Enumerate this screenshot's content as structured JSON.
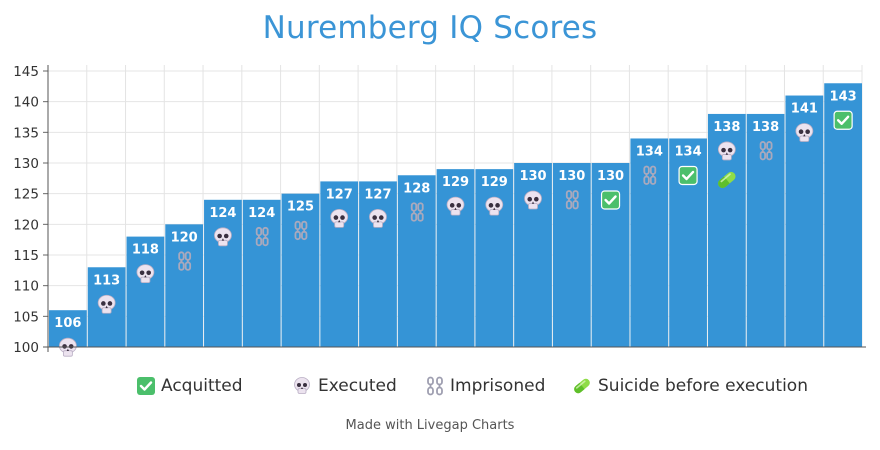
{
  "chart_data": {
    "type": "bar",
    "title": "Nuremberg IQ Scores",
    "xlabel": "",
    "ylabel": "",
    "ylim": [
      100,
      145
    ],
    "yticks": [
      100,
      105,
      110,
      115,
      120,
      125,
      130,
      135,
      140,
      145
    ],
    "grid": true,
    "bar_color": "#3594d6",
    "values": [
      106,
      113,
      118,
      120,
      124,
      124,
      125,
      127,
      127,
      128,
      129,
      129,
      130,
      130,
      130,
      134,
      134,
      138,
      138,
      141,
      143
    ],
    "markers": [
      [
        "executed"
      ],
      [
        "executed"
      ],
      [
        "executed"
      ],
      [
        "imprisoned"
      ],
      [
        "executed"
      ],
      [
        "imprisoned"
      ],
      [
        "imprisoned"
      ],
      [
        "executed"
      ],
      [
        "executed"
      ],
      [
        "imprisoned"
      ],
      [
        "executed"
      ],
      [
        "executed"
      ],
      [
        "executed"
      ],
      [
        "imprisoned"
      ],
      [
        "acquitted"
      ],
      [
        "imprisoned"
      ],
      [
        "acquitted"
      ],
      [
        "executed",
        "suicide"
      ],
      [
        "imprisoned"
      ],
      [
        "executed"
      ],
      [
        "acquitted"
      ]
    ],
    "legend": [
      {
        "key": "acquitted",
        "label": "Acquitted"
      },
      {
        "key": "executed",
        "label": "Executed"
      },
      {
        "key": "imprisoned",
        "label": "Imprisoned"
      },
      {
        "key": "suicide",
        "label": "Suicide before execution"
      }
    ],
    "legend_position": "bottom"
  },
  "footer": "Made with Livegap Charts",
  "colors": {
    "title": "#3b95d6",
    "acquitted": "#4bbf6b",
    "executed": "#e8e0ec",
    "imprisoned": "#a9a9b8",
    "suicide": "#7fd63a"
  }
}
